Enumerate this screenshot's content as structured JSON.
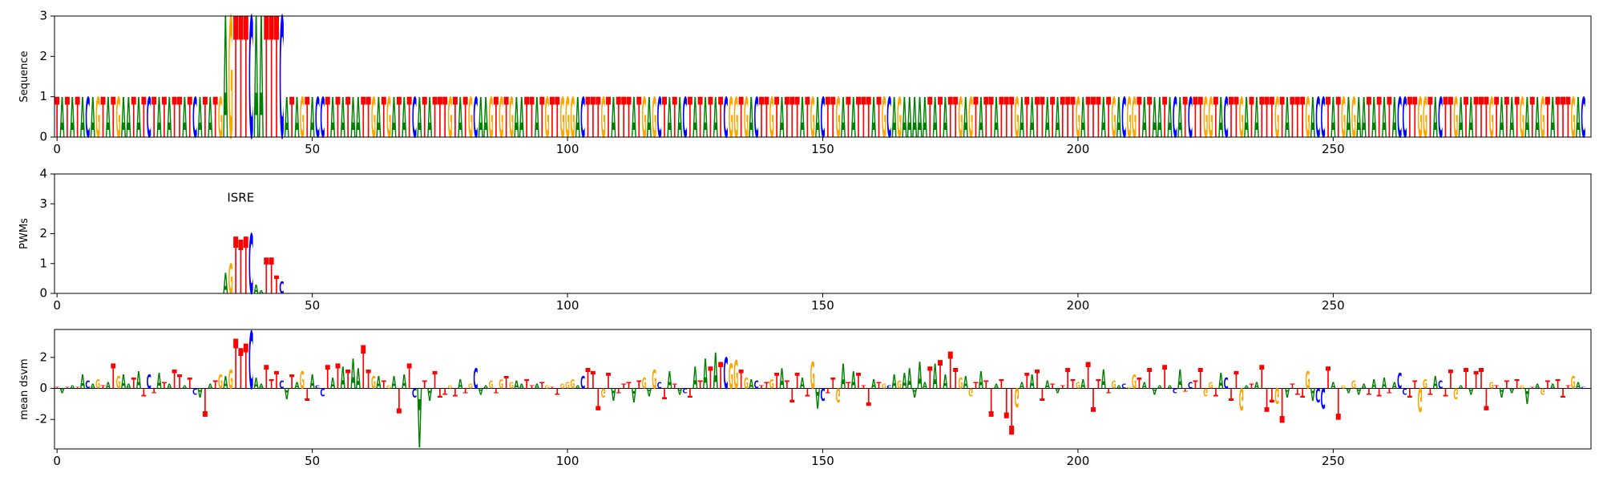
{
  "chart_data": [
    {
      "type": "logo",
      "ylabel": "Sequence",
      "xlim": [
        -0.5,
        300.5
      ],
      "ylim": [
        0,
        3
      ],
      "xticks": [
        0,
        50,
        100,
        150,
        200,
        250
      ],
      "yticks": [
        0,
        1,
        2,
        3
      ],
      "colors": {
        "A": "#008000",
        "C": "#0000ff",
        "G": "#ffa500",
        "T": "#ff0000"
      },
      "letters": [
        "T",
        "A",
        "T",
        "A",
        "T",
        "A",
        "C",
        "A",
        "G",
        "T",
        "A",
        "T",
        "G",
        "A",
        "A",
        "T",
        "A",
        "T",
        "C",
        "T",
        "A",
        "T",
        "A",
        "T",
        "T",
        "A",
        "T",
        "C",
        "A",
        "T",
        "A",
        "T",
        "G",
        "A",
        "G",
        "T",
        "T",
        "T",
        "C",
        "A",
        "A",
        "T",
        "T",
        "T",
        "C",
        "A",
        "T",
        "A",
        "G",
        "T",
        "A",
        "C",
        "C",
        "T",
        "A",
        "T",
        "A",
        "T",
        "A",
        "A",
        "T",
        "T",
        "G",
        "A",
        "T",
        "G",
        "A",
        "T",
        "A",
        "T",
        "C",
        "A",
        "T",
        "A",
        "T",
        "T",
        "T",
        "G",
        "T",
        "A",
        "T",
        "G",
        "C",
        "A",
        "A",
        "G",
        "T",
        "G",
        "T",
        "G",
        "A",
        "A",
        "T",
        "T",
        "A",
        "T",
        "G",
        "T",
        "T",
        "G",
        "G",
        "G",
        "A",
        "C",
        "T",
        "T",
        "T",
        "G",
        "T",
        "A",
        "T",
        "T",
        "T",
        "A",
        "T",
        "G",
        "A",
        "G",
        "C",
        "T",
        "A",
        "T",
        "A",
        "C",
        "T",
        "A",
        "T",
        "A",
        "T",
        "A",
        "T",
        "C",
        "G",
        "G",
        "T",
        "G",
        "A",
        "C",
        "T",
        "T",
        "G",
        "T",
        "A",
        "T",
        "T",
        "T",
        "A",
        "T",
        "G",
        "A",
        "C",
        "T",
        "T",
        "G",
        "A",
        "T",
        "A",
        "T",
        "T",
        "T",
        "A",
        "T",
        "G",
        "C",
        "A",
        "G",
        "A",
        "A",
        "A",
        "A",
        "A",
        "T",
        "A",
        "T",
        "A",
        "T",
        "T",
        "G",
        "A",
        "G",
        "T",
        "A",
        "T",
        "T",
        "A",
        "T",
        "T",
        "T",
        "G",
        "A",
        "T",
        "A",
        "T",
        "T",
        "A",
        "T",
        "A",
        "T",
        "T",
        "T",
        "G",
        "A",
        "T",
        "T",
        "T",
        "A",
        "T",
        "G",
        "A",
        "C",
        "G",
        "G",
        "T",
        "A",
        "T",
        "A",
        "A",
        "T",
        "A",
        "C",
        "A",
        "T",
        "C",
        "T",
        "T",
        "G",
        "G",
        "T",
        "A",
        "C",
        "T",
        "T",
        "G",
        "A",
        "T",
        "A",
        "T",
        "T",
        "T",
        "G",
        "T",
        "A",
        "T",
        "T",
        "T",
        "G",
        "A",
        "C",
        "C",
        "T",
        "A",
        "T",
        "G",
        "A",
        "G",
        "A",
        "A",
        "T",
        "A",
        "T",
        "A",
        "T",
        "A",
        "C",
        "C",
        "T",
        "T",
        "G",
        "G",
        "T",
        "A",
        "C",
        "T",
        "T",
        "G",
        "A",
        "T",
        "A",
        "T",
        "T",
        "T",
        "G",
        "T",
        "A",
        "T",
        "A",
        "T",
        "G",
        "A",
        "T",
        "A",
        "G",
        "T",
        "A",
        "T",
        "T",
        "T",
        "G",
        "A",
        "C"
      ],
      "values": [
        1,
        1,
        1,
        1,
        1,
        1,
        1,
        1,
        1,
        1,
        1,
        1,
        1,
        1,
        1,
        1,
        1,
        1,
        1,
        1,
        1,
        1,
        1,
        1,
        1,
        1,
        1,
        1,
        1,
        1,
        1,
        1,
        1,
        3,
        3,
        3,
        3,
        3,
        3,
        3,
        3,
        3,
        3,
        3,
        3,
        1,
        1,
        1,
        1,
        1,
        1,
        1,
        1,
        1,
        1,
        1,
        1,
        1,
        1,
        1,
        1,
        1,
        1,
        1,
        1,
        1,
        1,
        1,
        1,
        1,
        1,
        1,
        1,
        1,
        1,
        1,
        1,
        1,
        1,
        1,
        1,
        1,
        1,
        1,
        1,
        1,
        1,
        1,
        1,
        1,
        1,
        1,
        1,
        1,
        1,
        1,
        1,
        1,
        1,
        1,
        1,
        1,
        1,
        1,
        1,
        1,
        1,
        1,
        1,
        1,
        1,
        1,
        1,
        1,
        1,
        1,
        1,
        1,
        1,
        1,
        1,
        1,
        1,
        1,
        1,
        1,
        1,
        1,
        1,
        1,
        1,
        1,
        1,
        1,
        1,
        1,
        1,
        1,
        1,
        1,
        1,
        1,
        1,
        1,
        1,
        1,
        1,
        1,
        1,
        1,
        1,
        1,
        1,
        1,
        1,
        1,
        1,
        1,
        1,
        1,
        1,
        1,
        1,
        1,
        1,
        1,
        1,
        1,
        1,
        1,
        1,
        1,
        1,
        1,
        1,
        1,
        1,
        1,
        1,
        1,
        1,
        1,
        1,
        1,
        1,
        1,
        1,
        1,
        1,
        1,
        1,
        1,
        1,
        1,
        1,
        1,
        1,
        1,
        1,
        1,
        1,
        1,
        1,
        1,
        1,
        1,
        1,
        1,
        1,
        1,
        1,
        1,
        1,
        1,
        1,
        1,
        1,
        1,
        1,
        1,
        1,
        1,
        1,
        1,
        1,
        1,
        1,
        1,
        1,
        1,
        1,
        1,
        1,
        1,
        1,
        1,
        1,
        1,
        1,
        1,
        1,
        1,
        1,
        1,
        1,
        1,
        1,
        1,
        1,
        1,
        1,
        1,
        1,
        1,
        1,
        1,
        1,
        1,
        1,
        1,
        1,
        1,
        1,
        1,
        1,
        1,
        1,
        1,
        1,
        1,
        1,
        1,
        1,
        1,
        1,
        1,
        1,
        1,
        1,
        1,
        1,
        1,
        1,
        1,
        1,
        1,
        1,
        1,
        1,
        1,
        1,
        1,
        1,
        1,
        1,
        1,
        1,
        1,
        1,
        1,
        1,
        1,
        1,
        1,
        1,
        1,
        1,
        1,
        1
      ]
    },
    {
      "type": "logo",
      "ylabel": "PWMs",
      "annotation": "ISRE",
      "xlim": [
        -0.5,
        300.5
      ],
      "ylim": [
        0,
        4
      ],
      "xticks": [
        0,
        50,
        100,
        150,
        200,
        250
      ],
      "yticks": [
        0,
        1,
        2,
        3,
        4
      ],
      "colors": {
        "A": "#008000",
        "C": "#0000ff",
        "G": "#ffa500",
        "T": "#ff0000"
      },
      "x": [
        33,
        34,
        35,
        36,
        37,
        38,
        39,
        40,
        41,
        42,
        43,
        44
      ],
      "letters": [
        "A",
        "G",
        "T",
        "T",
        "T",
        "C",
        "A",
        "A",
        "T",
        "T",
        "T",
        "C"
      ],
      "values": [
        0.7,
        1.0,
        1.9,
        1.8,
        1.9,
        2.0,
        0.3,
        0.1,
        1.2,
        1.2,
        0.6,
        0.4
      ]
    },
    {
      "type": "logo",
      "ylabel": "mean dsvm",
      "xlim": [
        -0.5,
        300.5
      ],
      "ylim": [
        -3.9,
        3.8
      ],
      "xticks": [
        0,
        50,
        100,
        150,
        200,
        250
      ],
      "yticks": [
        -2,
        0,
        2
      ],
      "colors": {
        "A": "#008000",
        "C": "#0000ff",
        "G": "#ffa500",
        "T": "#ff0000"
      },
      "letters": [
        "T",
        "A",
        "T",
        "A",
        "T",
        "A",
        "C",
        "A",
        "G",
        "T",
        "A",
        "T",
        "G",
        "A",
        "A",
        "T",
        "A",
        "T",
        "C",
        "T",
        "A",
        "T",
        "A",
        "T",
        "T",
        "A",
        "T",
        "C",
        "A",
        "T",
        "A",
        "T",
        "G",
        "A",
        "G",
        "T",
        "T",
        "T",
        "C",
        "A",
        "A",
        "T",
        "T",
        "T",
        "C",
        "A",
        "T",
        "A",
        "G",
        "T",
        "A",
        "C",
        "C",
        "T",
        "A",
        "T",
        "A",
        "T",
        "A",
        "A",
        "T",
        "T",
        "G",
        "A",
        "T",
        "G",
        "A",
        "T",
        "A",
        "T",
        "C",
        "A",
        "T",
        "A",
        "T",
        "T",
        "T",
        "G",
        "T",
        "A",
        "T",
        "G",
        "C",
        "A",
        "A",
        "G",
        "T",
        "G",
        "T",
        "G",
        "A",
        "A",
        "T",
        "T",
        "A",
        "T",
        "G",
        "T",
        "T",
        "G",
        "G",
        "G",
        "A",
        "C",
        "T",
        "T",
        "T",
        "G",
        "T",
        "A",
        "T",
        "T",
        "T",
        "A",
        "T",
        "G",
        "A",
        "G",
        "C",
        "T",
        "A",
        "T",
        "A",
        "C",
        "T",
        "A",
        "T",
        "A",
        "T",
        "A",
        "T",
        "C",
        "G",
        "G",
        "T",
        "G",
        "A",
        "C",
        "T",
        "T",
        "G",
        "T",
        "A",
        "T",
        "T",
        "T",
        "A",
        "T",
        "G",
        "A",
        "C",
        "T",
        "T",
        "G",
        "A",
        "T",
        "A",
        "T",
        "T",
        "T",
        "A",
        "T",
        "G",
        "C",
        "A",
        "G",
        "A",
        "A",
        "A",
        "A",
        "A",
        "T",
        "A",
        "T",
        "A",
        "T",
        "T",
        "G",
        "A",
        "G",
        "T",
        "A",
        "T",
        "T",
        "A",
        "T",
        "T",
        "T",
        "G",
        "A",
        "T",
        "A",
        "T",
        "T",
        "A",
        "T",
        "A",
        "T",
        "T",
        "T",
        "G",
        "A",
        "T",
        "T",
        "T",
        "A",
        "T",
        "G",
        "A",
        "C",
        "G",
        "G",
        "T",
        "A",
        "T",
        "A",
        "A",
        "T",
        "A",
        "C",
        "A",
        "T",
        "C",
        "T",
        "T",
        "G",
        "G",
        "T",
        "A",
        "C",
        "T",
        "T",
        "G",
        "A",
        "T",
        "A",
        "T",
        "T",
        "T",
        "G",
        "T",
        "A",
        "T",
        "T",
        "T",
        "G",
        "A",
        "C",
        "C",
        "T",
        "A",
        "T",
        "G",
        "A",
        "G",
        "A",
        "A",
        "T",
        "A",
        "T",
        "A",
        "T",
        "A",
        "C",
        "C",
        "T",
        "T",
        "G",
        "G",
        "T",
        "A",
        "C",
        "T",
        "T",
        "G",
        "A",
        "T",
        "A",
        "T",
        "T",
        "T",
        "G",
        "T",
        "A",
        "T",
        "A",
        "T",
        "G",
        "A",
        "T",
        "A",
        "G",
        "T",
        "A",
        "T",
        "T",
        "T",
        "G",
        "A",
        "C"
      ],
      "values": [
        0.1,
        -0.3,
        0.1,
        0.2,
        0.1,
        0.9,
        0.5,
        0.3,
        0.6,
        0.2,
        0.4,
        1.6,
        0.8,
        0.9,
        0.3,
        0.7,
        1.1,
        -0.5,
        0.9,
        -0.3,
        1.0,
        0.4,
        0.3,
        1.2,
        0.9,
        0.2,
        0.7,
        -0.4,
        -0.6,
        -1.8,
        0.3,
        0.5,
        0.9,
        0.8,
        1.2,
        3.2,
        2.6,
        2.9,
        3.7,
        0.7,
        0.3,
        1.5,
        0.6,
        1.1,
        0.5,
        -0.7,
        0.9,
        0.4,
        1.1,
        -0.8,
        0.9,
        0.2,
        -0.5,
        1.5,
        0.7,
        1.6,
        1.4,
        1.2,
        1.9,
        1.3,
        2.8,
        1.2,
        0.8,
        0.8,
        0.5,
        0.2,
        0.8,
        -1.6,
        0.9,
        1.6,
        -0.6,
        -3.8,
        0.5,
        -0.8,
        1.1,
        -0.6,
        -0.4,
        0.2,
        -0.5,
        0.6,
        -0.3,
        0.3,
        1.3,
        -0.4,
        0.2,
        0.5,
        -0.3,
        0.6,
        0.8,
        0.4,
        0.5,
        0.3,
        0.6,
        0.2,
        0.3,
        0.4,
        0.2,
        0.1,
        -0.4,
        0.3,
        0.4,
        0.6,
        0.2,
        0.8,
        1.3,
        1.1,
        -1.4,
        -0.6,
        1.0,
        -0.8,
        -0.3,
        0.3,
        0.4,
        -0.9,
        0.5,
        0.7,
        -0.5,
        1.2,
        0.4,
        -0.7,
        1.1,
        0.3,
        -0.4,
        -0.3,
        -0.6,
        1.4,
        0.5,
        1.9,
        1.4,
        2.3,
        1.7,
        2.0,
        1.6,
        1.8,
        1.2,
        0.7,
        0.6,
        0.5,
        0.2,
        0.4,
        0.6,
        1.0,
        1.3,
        0.5,
        -0.9,
        1.0,
        0.7,
        -0.5,
        1.7,
        -1.3,
        -0.8,
        -0.3,
        0.7,
        -0.9,
        1.6,
        0.4,
        1.1,
        1.0,
        0.2,
        -1.1,
        0.6,
        0.4,
        0.3,
        0.2,
        0.9,
        0.5,
        1.0,
        1.3,
        -0.6,
        1.7,
        0.4,
        1.4,
        1.6,
        1.8,
        0.9,
        2.4,
        1.3,
        0.7,
        0.8,
        -0.5,
        0.4,
        1.1,
        0.5,
        -1.8,
        0.3,
        0.6,
        -1.9,
        -3.0,
        -1.2,
        0.4,
        1.0,
        0.9,
        1.2,
        -0.8,
        0.5,
        0.3,
        -0.3,
        0.2,
        1.3,
        0.6,
        0.4,
        0.6,
        1.7,
        -1.5,
        0.6,
        1.2,
        -0.3,
        0.5,
        0.2,
        0.3,
        0.1,
        0.9,
        0.7,
        0.4,
        1.3,
        -0.4,
        0.2,
        1.5,
        0.2,
        -0.3,
        1.2,
        -0.2,
        0.4,
        0.5,
        1.3,
        -0.5,
        0.4,
        -0.5,
        1.0,
        0.7,
        -0.8,
        1.1,
        -1.4,
        0.2,
        0.3,
        0.4,
        1.5,
        -1.5,
        -0.9,
        -1.0,
        -2.2,
        -0.6,
        0.3,
        -0.4,
        -0.6,
        1.1,
        -0.8,
        -0.9,
        -1.3,
        1.4,
        0.4,
        -2.0,
        0.2,
        -0.3,
        0.5,
        -0.4,
        0.3,
        -0.4,
        0.6,
        -0.5,
        0.7,
        -0.3,
        0.4,
        1.0,
        -0.4,
        -0.6,
        0.5,
        -1.5,
        0.6,
        -0.4,
        0.8,
        0.5,
        -0.5,
        1.2,
        -0.7,
        0.2,
        1.3,
        -0.4,
        1.1,
        1.3,
        -1.4,
        0.4,
        0.2,
        -0.6,
        0.5,
        -0.3,
        0.6,
        0.2,
        -1.0,
        0.1,
        0.3,
        -0.4,
        0.5,
        0.3,
        0.6,
        -0.6,
        0.2,
        0.8,
        0.4,
        0.1
      ]
    }
  ]
}
